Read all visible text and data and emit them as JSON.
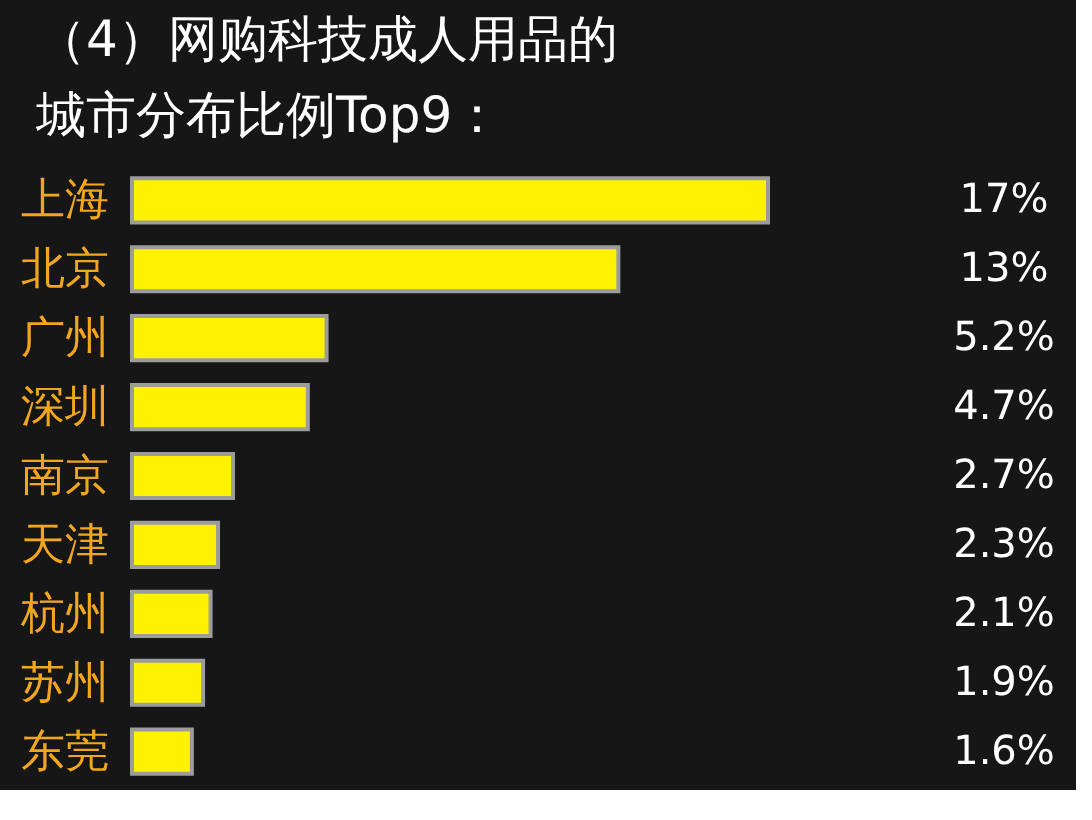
{
  "chart_data": {
    "type": "bar",
    "orientation": "horizontal",
    "title": "（4）网购科技成人用品的城市分布比例Top9：",
    "categories": [
      "上海",
      "北京",
      "广州",
      "深圳",
      "南京",
      "天津",
      "杭州",
      "苏州",
      "东莞"
    ],
    "values": [
      17,
      13,
      5.2,
      4.7,
      2.7,
      2.3,
      2.1,
      1.9,
      1.6
    ],
    "value_labels": [
      "17%",
      "13%",
      "5.2%",
      "4.7%",
      "2.7%",
      "2.3%",
      "2.1%",
      "1.9%",
      "1.6%"
    ],
    "color": "#fff200"
  }
}
